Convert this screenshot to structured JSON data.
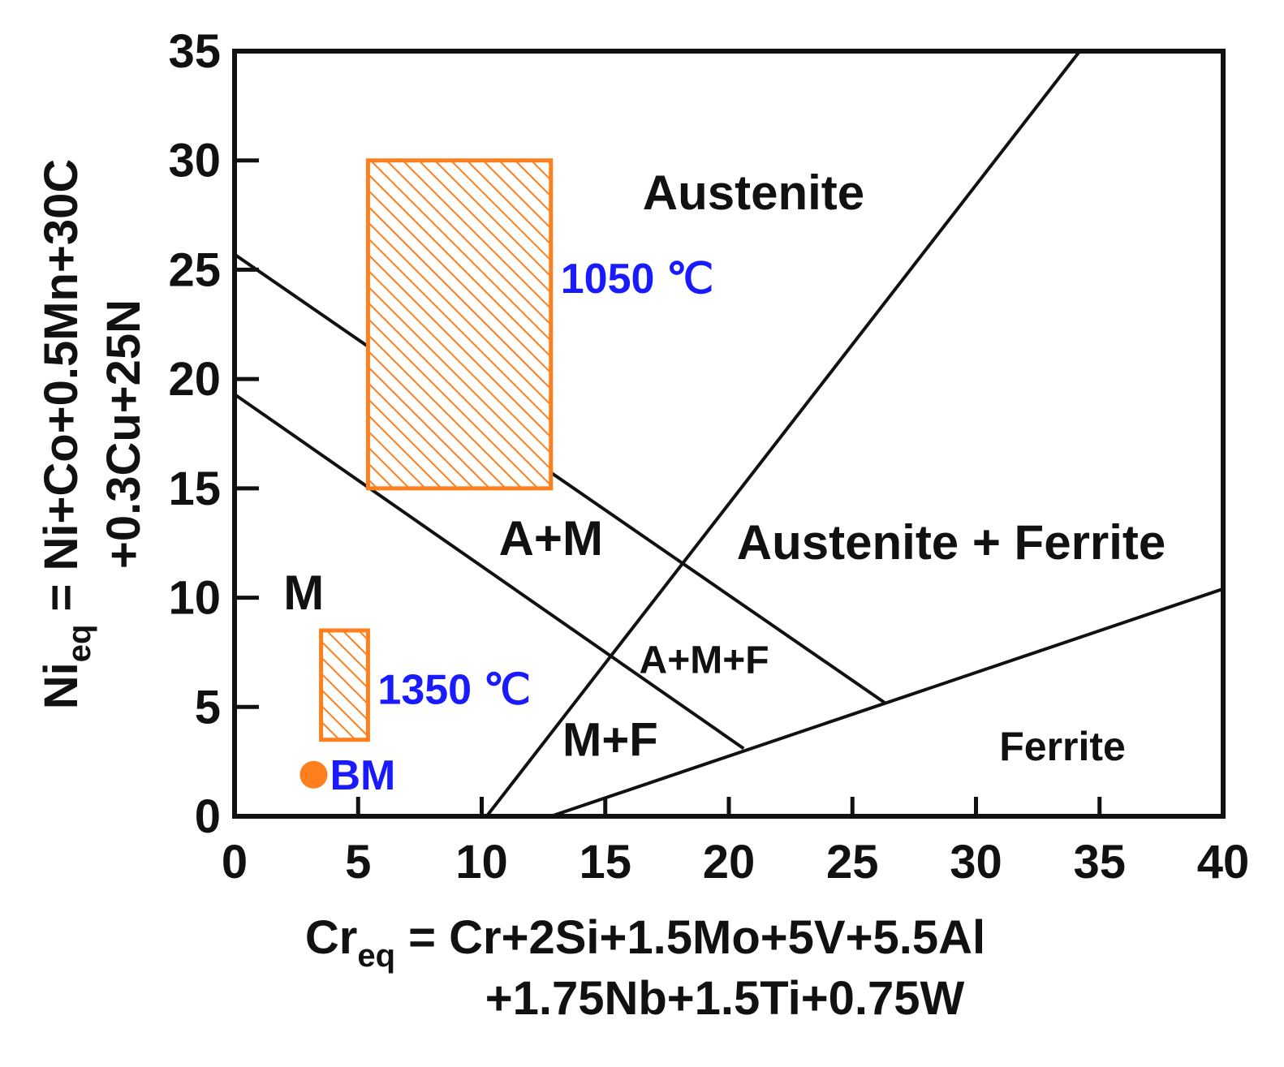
{
  "chart_data": {
    "type": "scatter",
    "title": "",
    "xlabel": {
      "main": "Cr",
      "sub": "eq",
      "rest": " = Cr+2Si+1.5Mo+5V+5.5Al",
      "line2": "+1.75Nb+1.5Ti+0.75W"
    },
    "ylabel": {
      "main": "Ni",
      "sub": "eq",
      "rest": " = Ni+Co+0.5Mn+30C",
      "line2": "+0.3Cu+25N"
    },
    "xlim": [
      0,
      40
    ],
    "ylim": [
      0,
      35
    ],
    "x_ticks": [
      "0",
      "5",
      "10",
      "15",
      "20",
      "25",
      "30",
      "35",
      "40"
    ],
    "y_ticks": [
      "0",
      "5",
      "10",
      "15",
      "20",
      "25",
      "30",
      "35"
    ],
    "grid": false,
    "boundaries": [
      {
        "points": [
          [
            0,
            25.7
          ],
          [
            26.3,
            5.2
          ]
        ]
      },
      {
        "points": [
          [
            0,
            19.3
          ],
          [
            20.6,
            3.1
          ]
        ]
      },
      {
        "points": [
          [
            10.2,
            0
          ],
          [
            34.2,
            35
          ]
        ]
      },
      {
        "points": [
          [
            12.8,
            0
          ],
          [
            40,
            10.4
          ]
        ]
      }
    ],
    "regions": [
      {
        "label": "Austenite",
        "x": 21,
        "y": 28.5
      },
      {
        "label": "Austenite + Ferrite",
        "x": 29,
        "y": 12.5
      },
      {
        "label": "A+M",
        "x": 12.8,
        "y": 12.7
      },
      {
        "label": "M",
        "x": 2.8,
        "y": 10.2
      },
      {
        "label": "A+M+F",
        "x": 19,
        "y": 7.3
      },
      {
        "label": "M+F",
        "x": 15.2,
        "y": 3.5
      },
      {
        "label": "Ferrite",
        "x": 33.5,
        "y": 3.3
      }
    ],
    "hatched_ranges": [
      {
        "label": "1050 ℃",
        "x": [
          5.4,
          12.8
        ],
        "y": [
          15,
          30
        ],
        "color": "#ff7f1e"
      },
      {
        "label": "1350 ℃",
        "x": [
          3.5,
          5.4
        ],
        "y": [
          3.5,
          8.5
        ],
        "color": "#ff7f1e"
      }
    ],
    "points": [
      {
        "label": "BM",
        "x": 3.2,
        "y": 1.9,
        "color": "#ff7f1e"
      }
    ],
    "colors": {
      "annotation": "#1a1aff",
      "marker": "#ff7f1e",
      "axis": "#111111"
    }
  }
}
